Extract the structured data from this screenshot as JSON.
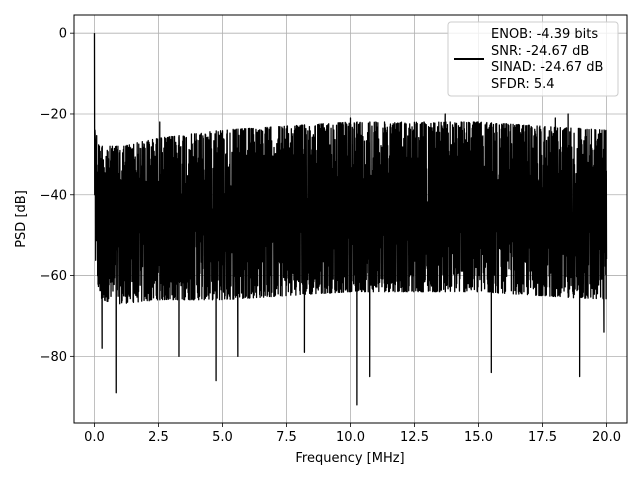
{
  "chart_data": {
    "type": "line",
    "xlabel": "Frequency [MHz]",
    "ylabel": "PSD [dB]",
    "xlim": [
      -0.8,
      20.8
    ],
    "ylim": [
      -96.5,
      4.5
    ],
    "xticks": [
      0.0,
      2.5,
      5.0,
      7.5,
      10.0,
      12.5,
      15.0,
      17.5,
      20.0
    ],
    "xtick_labels": [
      "0.0",
      "2.5",
      "5.0",
      "7.5",
      "10.0",
      "12.5",
      "15.0",
      "17.5",
      "20.0"
    ],
    "yticks": [
      0,
      -20,
      -40,
      -60,
      -80
    ],
    "ytick_labels": [
      "0",
      "−20",
      "−40",
      "−60",
      "−80"
    ],
    "grid": true,
    "legend_position": "top-right",
    "series": [
      {
        "color": "#000000",
        "x_range": [
          0.0,
          20.0
        ],
        "peak": {
          "x": 0.0,
          "y": 0.0
        },
        "upper_envelope": {
          "x": [
            0.0,
            0.05,
            0.2,
            1.0,
            2.5,
            5.0,
            7.5,
            10.0,
            12.5,
            15.0,
            17.5,
            20.0
          ],
          "y": [
            0.0,
            -24,
            -28,
            -28,
            -26,
            -24,
            -23,
            -22,
            -22,
            -22,
            -23,
            -24
          ]
        },
        "lower_envelope": {
          "x": [
            0.0,
            0.2,
            1.0,
            2.5,
            5.0,
            7.5,
            10.0,
            12.5,
            15.0,
            17.5,
            20.0
          ],
          "y": [
            -55,
            -66,
            -67,
            -66,
            -66,
            -65,
            -64,
            -64,
            -64,
            -65,
            -66
          ]
        },
        "notable_dips": [
          {
            "x": 0.3,
            "y": -78
          },
          {
            "x": 0.85,
            "y": -89
          },
          {
            "x": 3.3,
            "y": -80
          },
          {
            "x": 4.75,
            "y": -86
          },
          {
            "x": 5.6,
            "y": -80
          },
          {
            "x": 8.2,
            "y": -79
          },
          {
            "x": 10.25,
            "y": -92
          },
          {
            "x": 10.75,
            "y": -85
          },
          {
            "x": 15.5,
            "y": -84
          },
          {
            "x": 18.95,
            "y": -85
          },
          {
            "x": 19.9,
            "y": -74
          }
        ],
        "notable_spikes": [
          {
            "x": 2.55,
            "y": -22
          },
          {
            "x": 10.0,
            "y": -21
          },
          {
            "x": 13.7,
            "y": -20
          },
          {
            "x": 14.95,
            "y": -22
          },
          {
            "x": 18.0,
            "y": -21
          },
          {
            "x": 18.5,
            "y": -20
          }
        ]
      }
    ],
    "legend": {
      "entries": [
        "ENOB: -4.39 bits",
        "SNR: -24.67 dB",
        "SINAD: -24.67 dB",
        "SFDR: 5.4"
      ]
    }
  }
}
